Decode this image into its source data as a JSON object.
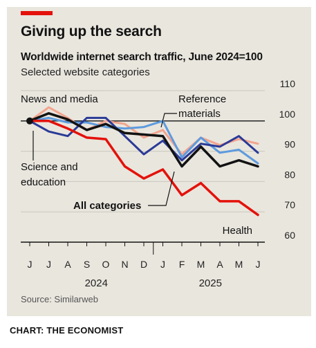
{
  "header": {
    "title": "Giving up the search",
    "subtitle": "Worldwide internet search traffic, June 2024=100",
    "note": "Selected website categories"
  },
  "footer": {
    "source": "Source: Similarweb",
    "credit": "CHART: THE ECONOMIST"
  },
  "colors": {
    "accent": "#e3120b",
    "panel": "#e9e6de",
    "grid": "#c9c6bf"
  },
  "chart_data": {
    "type": "line",
    "x": [
      "J",
      "J",
      "A",
      "S",
      "O",
      "N",
      "D",
      "J",
      "F",
      "M",
      "A",
      "M",
      "J"
    ],
    "year_labels": [
      {
        "label": "2024",
        "index": 3.5
      },
      {
        "label": "2025",
        "index": 9.5
      }
    ],
    "ylim": [
      60,
      110
    ],
    "yticks": [
      60,
      70,
      80,
      90,
      100,
      110
    ],
    "baseline": 100,
    "series": [
      {
        "name": "News and media",
        "color": "#f2a48e",
        "width": 3,
        "values": [
          100,
          104.5,
          101,
          97,
          100,
          99,
          94.5,
          97,
          89,
          94.5,
          92,
          94,
          92.5
        ]
      },
      {
        "name": "Reference materials",
        "color": "#5d9bde",
        "width": 3,
        "values": [
          100,
          101,
          99.5,
          99.5,
          98,
          97.5,
          98,
          100,
          88,
          94.5,
          89.5,
          90.5,
          86
        ]
      },
      {
        "name": "Science and education",
        "color": "#2a3a96",
        "width": 3,
        "values": [
          100,
          96.5,
          95,
          101,
          101,
          95,
          89,
          93.5,
          87,
          92.5,
          91.5,
          95,
          89.5
        ]
      },
      {
        "name": "All categories",
        "color": "#121212",
        "width": 3.5,
        "values": [
          100,
          102.5,
          100.5,
          97,
          99,
          96,
          95.5,
          95,
          85,
          91.5,
          85,
          87,
          85
        ]
      },
      {
        "name": "Health",
        "color": "#e3120b",
        "width": 3.5,
        "values": [
          100,
          100,
          97.5,
          94.5,
          94,
          85,
          81,
          84,
          75.5,
          79.5,
          73.5,
          73.5,
          69
        ]
      }
    ],
    "annotations": [
      {
        "label": "News and media"
      },
      {
        "label": "Reference materials"
      },
      {
        "label": "Science and education"
      },
      {
        "label": "All categories"
      },
      {
        "label": "Health"
      }
    ]
  }
}
